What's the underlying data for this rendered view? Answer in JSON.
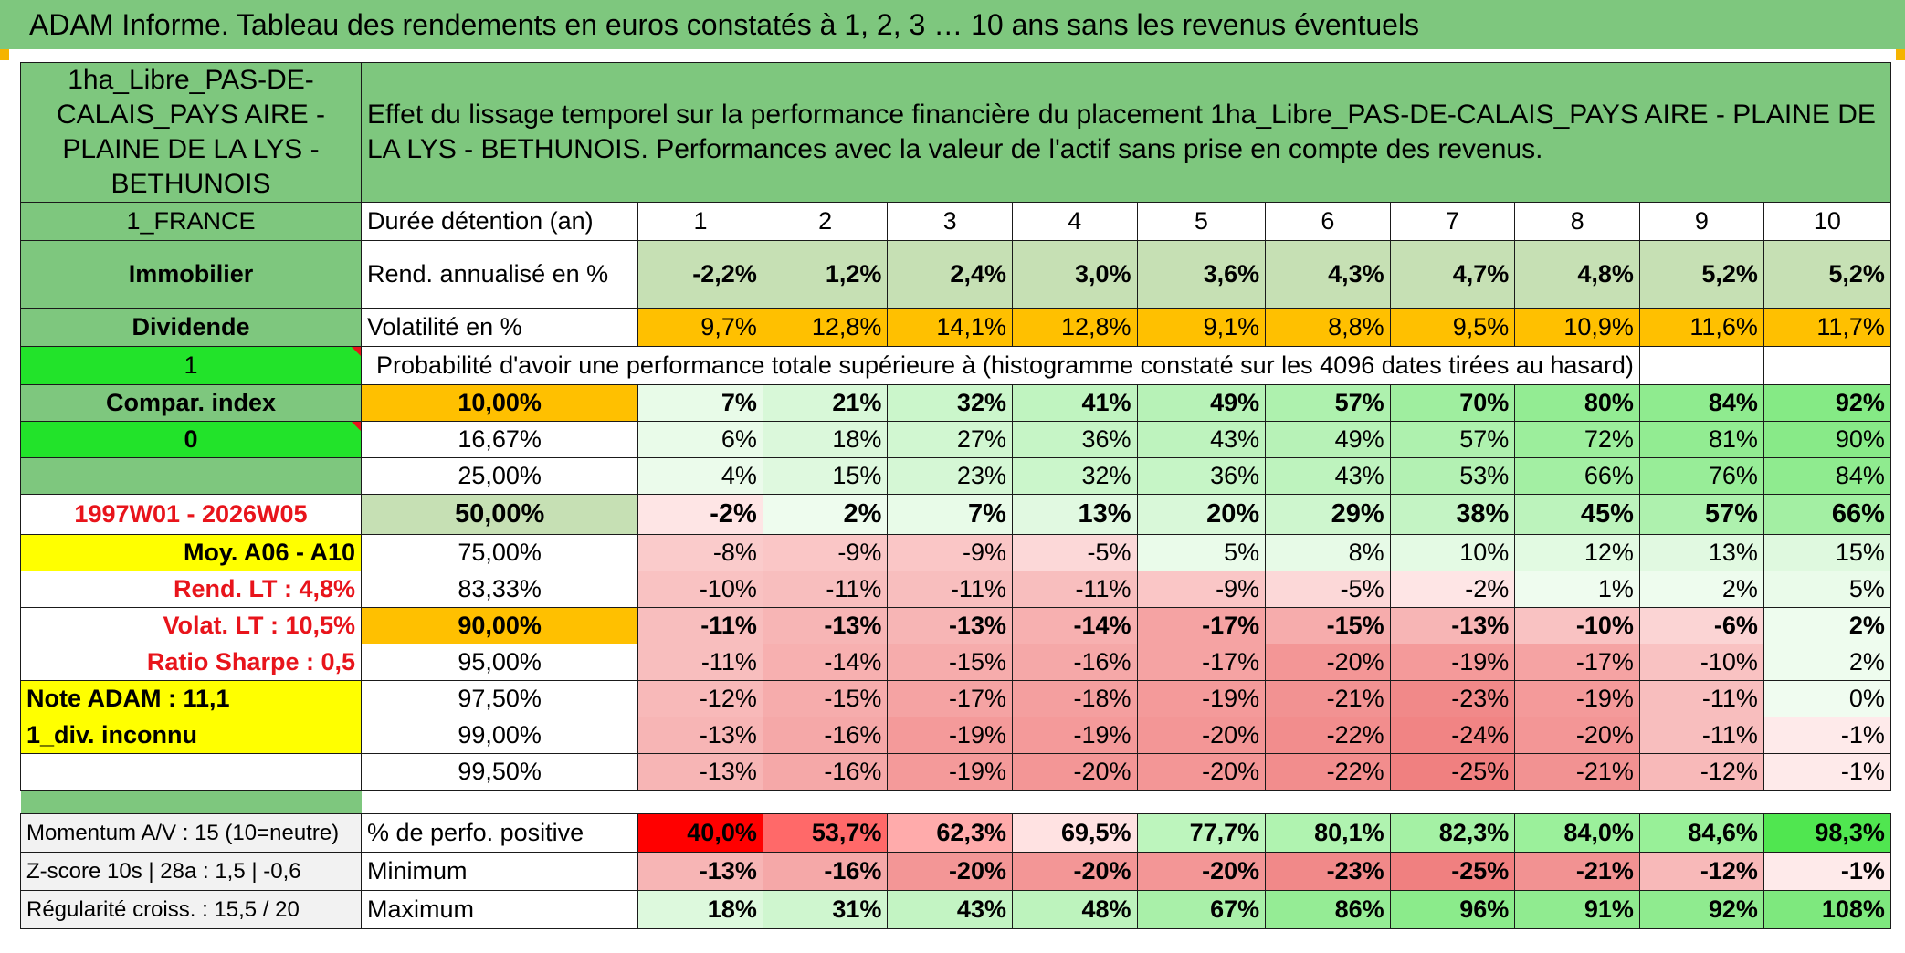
{
  "title": "ADAM Informe. Tableau des rendements en euros constatés à 1, 2, 3 … 10 ans sans les revenus éventuels",
  "asset_name": "1ha_Libre_PAS-DE-CALAIS_PAYS AIRE - PLAINE DE LA LYS - BETHUNOIS",
  "description": "Effet du lissage temporel sur la performance financière du placement 1ha_Libre_PAS-DE-CALAIS_PAYS AIRE - PLAINE DE LA LYS - BETHUNOIS. Performances avec la valeur de l'actif sans prise en compte des revenus.",
  "left_panel": {
    "country": "1_FRANCE",
    "category": "Immobilier",
    "type": "Dividende",
    "flag1": "1",
    "compar_index": "Compar. index",
    "flag2": "0",
    "period": "1997W01 - 2026W05",
    "moy": "Moy. A06 - A10",
    "rend_lt": "Rend. LT :   4,8%",
    "volat_lt": "Volat. LT :   10,5%",
    "ratio_sharpe": "Ratio Sharpe :   0,5",
    "note_adam": "Note ADAM : 11,1",
    "div": "1_div. inconnu",
    "momentum": "Momentum A/V : 15 (10=neutre)",
    "zscore": "Z-score 10s | 28a : 1,5 | -0,6",
    "regularite": "Régularité croiss. : 15,5 / 20"
  },
  "header": {
    "duree_label": "Durée détention (an)",
    "years": [
      "1",
      "2",
      "3",
      "4",
      "5",
      "6",
      "7",
      "8",
      "9",
      "10"
    ]
  },
  "rend": {
    "label": "Rend. annualisé en %",
    "values": [
      "-2,2%",
      "1,2%",
      "2,4%",
      "3,0%",
      "3,6%",
      "4,3%",
      "4,7%",
      "4,8%",
      "5,2%",
      "5,2%"
    ]
  },
  "vol": {
    "label": "Volatilité en %",
    "values": [
      "9,7%",
      "12,8%",
      "14,1%",
      "12,8%",
      "9,1%",
      "8,8%",
      "9,5%",
      "10,9%",
      "11,6%",
      "11,7%"
    ]
  },
  "prob_title": "Probabilité d'avoir une performance totale supérieure à (histogramme constaté sur les 4096 dates tirées au hasard)",
  "prob_rows": [
    {
      "pct": "10,00%",
      "values": [
        "7%",
        "21%",
        "32%",
        "41%",
        "49%",
        "57%",
        "70%",
        "80%",
        "84%",
        "92%"
      ]
    },
    {
      "pct": "16,67%",
      "values": [
        "6%",
        "18%",
        "27%",
        "36%",
        "43%",
        "49%",
        "57%",
        "72%",
        "81%",
        "90%"
      ]
    },
    {
      "pct": "25,00%",
      "values": [
        "4%",
        "15%",
        "23%",
        "32%",
        "36%",
        "43%",
        "53%",
        "66%",
        "76%",
        "84%"
      ]
    },
    {
      "pct": "50,00%",
      "values": [
        "-2%",
        "2%",
        "7%",
        "13%",
        "20%",
        "29%",
        "38%",
        "45%",
        "57%",
        "66%"
      ]
    },
    {
      "pct": "75,00%",
      "values": [
        "-8%",
        "-9%",
        "-9%",
        "-5%",
        "5%",
        "8%",
        "10%",
        "12%",
        "13%",
        "15%"
      ]
    },
    {
      "pct": "83,33%",
      "values": [
        "-10%",
        "-11%",
        "-11%",
        "-11%",
        "-9%",
        "-5%",
        "-2%",
        "1%",
        "2%",
        "5%"
      ]
    },
    {
      "pct": "90,00%",
      "values": [
        "-11%",
        "-13%",
        "-13%",
        "-14%",
        "-17%",
        "-15%",
        "-13%",
        "-10%",
        "-6%",
        "2%"
      ]
    },
    {
      "pct": "95,00%",
      "values": [
        "-11%",
        "-14%",
        "-15%",
        "-16%",
        "-17%",
        "-20%",
        "-19%",
        "-17%",
        "-10%",
        "2%"
      ]
    },
    {
      "pct": "97,50%",
      "values": [
        "-12%",
        "-15%",
        "-17%",
        "-18%",
        "-19%",
        "-21%",
        "-23%",
        "-19%",
        "-11%",
        "0%"
      ]
    },
    {
      "pct": "99,00%",
      "values": [
        "-13%",
        "-16%",
        "-19%",
        "-19%",
        "-20%",
        "-22%",
        "-24%",
        "-20%",
        "-11%",
        "-1%"
      ]
    },
    {
      "pct": "99,50%",
      "values": [
        "-13%",
        "-16%",
        "-19%",
        "-20%",
        "-20%",
        "-22%",
        "-25%",
        "-21%",
        "-12%",
        "-1%"
      ]
    }
  ],
  "positive": {
    "label": "% de perfo. positive",
    "values": [
      "40,0%",
      "53,7%",
      "62,3%",
      "69,5%",
      "77,7%",
      "80,1%",
      "82,3%",
      "84,0%",
      "84,6%",
      "98,3%"
    ]
  },
  "minimum": {
    "label": "Minimum",
    "values": [
      "-13%",
      "-16%",
      "-20%",
      "-20%",
      "-20%",
      "-23%",
      "-25%",
      "-21%",
      "-12%",
      "-1%"
    ]
  },
  "maximum": {
    "label": "Maximum",
    "values": [
      "18%",
      "31%",
      "43%",
      "48%",
      "67%",
      "86%",
      "96%",
      "91%",
      "92%",
      "108%"
    ]
  },
  "colors": {
    "header_green": "#7ec77e",
    "light_green": "#c6e0b4",
    "bright_green": "#22e32a",
    "yellow": "#ffff00",
    "orange": "#ffc000",
    "red_text": "#e8141b"
  }
}
